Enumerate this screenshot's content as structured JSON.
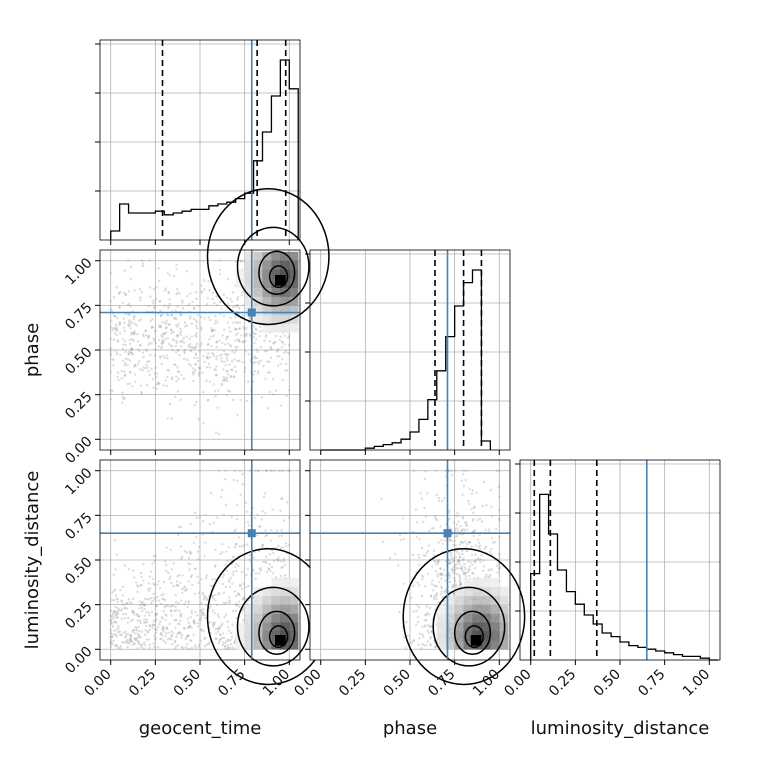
{
  "chart_data": {
    "type": "corner",
    "params": [
      "geocent_time",
      "phase",
      "luminosity_distance"
    ],
    "axis_labels": [
      "geocent_time",
      "phase",
      "luminosity_distance"
    ],
    "tick_labels": [
      "0.00",
      "0.25",
      "0.50",
      "0.75",
      "1.00"
    ],
    "tick_values": [
      0,
      0.25,
      0.5,
      0.75,
      1.0
    ],
    "range": [
      -0.06,
      1.06
    ],
    "grid": true,
    "truths": {
      "geocent_time": 0.79,
      "phase": 0.71,
      "luminosity_distance": 0.65
    },
    "truth_color": "#4682b4",
    "histograms": [
      {
        "param": "geocent_time",
        "bins_start": 0.0,
        "bin_width": 0.05,
        "values": [
          0.05,
          0.2,
          0.15,
          0.15,
          0.15,
          0.16,
          0.14,
          0.15,
          0.16,
          0.17,
          0.17,
          0.19,
          0.2,
          0.21,
          0.23,
          0.26,
          0.44,
          0.6,
          0.8,
          1.0,
          0.84
        ],
        "quantiles": [
          0.29,
          0.82,
          0.98
        ]
      },
      {
        "param": "phase",
        "bins_start": 0.0,
        "bin_width": 0.05,
        "values": [
          0.0,
          0.0,
          0.0,
          0.0,
          0.0,
          0.01,
          0.02,
          0.03,
          0.04,
          0.06,
          0.1,
          0.17,
          0.28,
          0.44,
          0.63,
          0.8,
          0.93,
          1.0,
          0.05
        ],
        "quantiles": [
          0.64,
          0.8,
          0.9
        ]
      },
      {
        "param": "luminosity_distance",
        "bins_start": 0.0,
        "bin_width": 0.05,
        "values": [
          0.48,
          0.92,
          0.7,
          0.5,
          0.38,
          0.31,
          0.25,
          0.2,
          0.15,
          0.13,
          0.1,
          0.08,
          0.07,
          0.06,
          0.05,
          0.04,
          0.03,
          0.02,
          0.02,
          0.01,
          0.0
        ],
        "quantiles": [
          0.02,
          0.11,
          0.37
        ]
      }
    ],
    "density_peaks": [
      {
        "x": "geocent_time",
        "y": "phase",
        "peak": [
          0.95,
          0.89
        ]
      },
      {
        "x": "geocent_time",
        "y": "luminosity_distance",
        "peak": [
          0.95,
          0.05
        ]
      },
      {
        "x": "phase",
        "y": "luminosity_distance",
        "peak": [
          0.87,
          0.05
        ]
      }
    ]
  }
}
